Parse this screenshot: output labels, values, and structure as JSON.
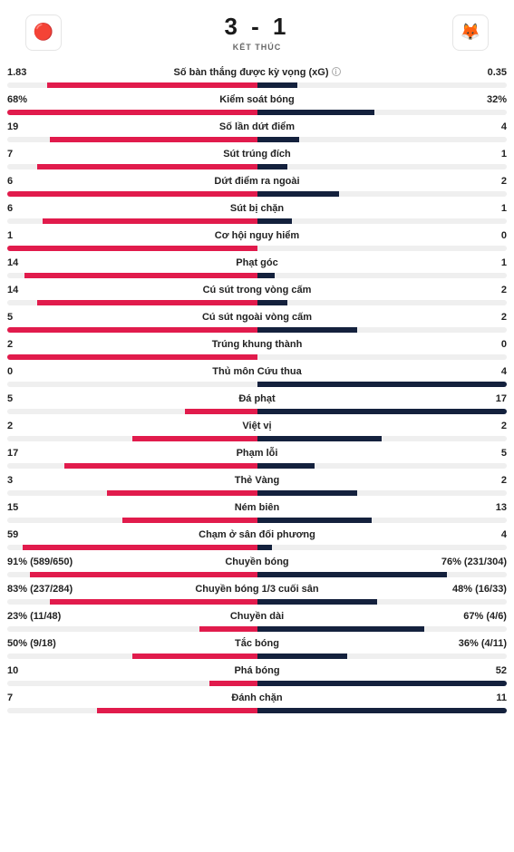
{
  "colors": {
    "home": "#e11b4c",
    "away": "#14213d",
    "track": "#efefef",
    "text": "#222222"
  },
  "header": {
    "score": "3 - 1",
    "status": "KẾT THÚC",
    "home_crest_glyph": "🔴",
    "away_crest_glyph": "🦊"
  },
  "stats": [
    {
      "label": "Số bàn thắng được kỳ vọng (xG)",
      "info": true,
      "home": "1.83",
      "away": "0.35",
      "home_pct": 84,
      "away_pct": 16,
      "shared_track": false
    },
    {
      "label": "Kiểm soát bóng",
      "home": "68%",
      "away": "32%",
      "home_pct": 100,
      "away_pct": 47,
      "shared_track": true
    },
    {
      "label": "Số lần dứt điểm",
      "home": "19",
      "away": "4",
      "home_pct": 83,
      "away_pct": 17,
      "shared_track": false
    },
    {
      "label": "Sút trúng đích",
      "home": "7",
      "away": "1",
      "home_pct": 88,
      "away_pct": 12,
      "shared_track": false
    },
    {
      "label": "Dứt điểm ra ngoài",
      "home": "6",
      "away": "2",
      "home_pct": 100,
      "away_pct": 33,
      "shared_track": true
    },
    {
      "label": "Sút bị chặn",
      "home": "6",
      "away": "1",
      "home_pct": 86,
      "away_pct": 14,
      "shared_track": false
    },
    {
      "label": "Cơ hội nguy hiểm",
      "home": "1",
      "away": "0",
      "home_pct": 100,
      "away_pct": 0,
      "shared_track": false
    },
    {
      "label": "Phạt góc",
      "home": "14",
      "away": "1",
      "home_pct": 93,
      "away_pct": 7,
      "shared_track": false
    },
    {
      "label": "Cú sút trong vòng cấm",
      "home": "14",
      "away": "2",
      "home_pct": 88,
      "away_pct": 12,
      "shared_track": false
    },
    {
      "label": "Cú sút ngoài vòng cấm",
      "home": "5",
      "away": "2",
      "home_pct": 100,
      "away_pct": 40,
      "shared_track": true
    },
    {
      "label": "Trúng khung thành",
      "home": "2",
      "away": "0",
      "home_pct": 100,
      "away_pct": 0,
      "shared_track": false
    },
    {
      "label": "Thủ môn Cứu thua",
      "home": "0",
      "away": "4",
      "home_pct": 0,
      "away_pct": 100,
      "shared_track": false
    },
    {
      "label": "Đá phạt",
      "home": "5",
      "away": "17",
      "home_pct": 29,
      "away_pct": 100,
      "shared_track": true
    },
    {
      "label": "Việt vị",
      "home": "2",
      "away": "2",
      "home_pct": 50,
      "away_pct": 50,
      "shared_track": true
    },
    {
      "label": "Phạm lỗi",
      "home": "17",
      "away": "5",
      "home_pct": 77,
      "away_pct": 23,
      "shared_track": false
    },
    {
      "label": "Thẻ Vàng",
      "home": "3",
      "away": "2",
      "home_pct": 60,
      "away_pct": 40,
      "shared_track": true
    },
    {
      "label": "Ném biên",
      "home": "15",
      "away": "13",
      "home_pct": 54,
      "away_pct": 46,
      "shared_track": true
    },
    {
      "label": "Chạm ở sân đối phương",
      "home": "59",
      "away": "4",
      "home_pct": 94,
      "away_pct": 6,
      "shared_track": false
    },
    {
      "label": "Chuyền bóng",
      "home": "91% (589/650)",
      "away": "76% (231/304)",
      "home_pct": 91,
      "away_pct": 76,
      "shared_track": true
    },
    {
      "label": "Chuyền bóng 1/3 cuối sân",
      "home": "83% (237/284)",
      "away": "48% (16/33)",
      "home_pct": 83,
      "away_pct": 48,
      "shared_track": true
    },
    {
      "label": "Chuyền dài",
      "home": "23% (11/48)",
      "away": "67% (4/6)",
      "home_pct": 23,
      "away_pct": 67,
      "shared_track": true
    },
    {
      "label": "Tắc bóng",
      "home": "50% (9/18)",
      "away": "36% (4/11)",
      "home_pct": 50,
      "away_pct": 36,
      "shared_track": true
    },
    {
      "label": "Phá bóng",
      "home": "10",
      "away": "52",
      "home_pct": 19,
      "away_pct": 100,
      "shared_track": true
    },
    {
      "label": "Đánh chặn",
      "home": "7",
      "away": "11",
      "home_pct": 64,
      "away_pct": 100,
      "shared_track": true
    }
  ]
}
